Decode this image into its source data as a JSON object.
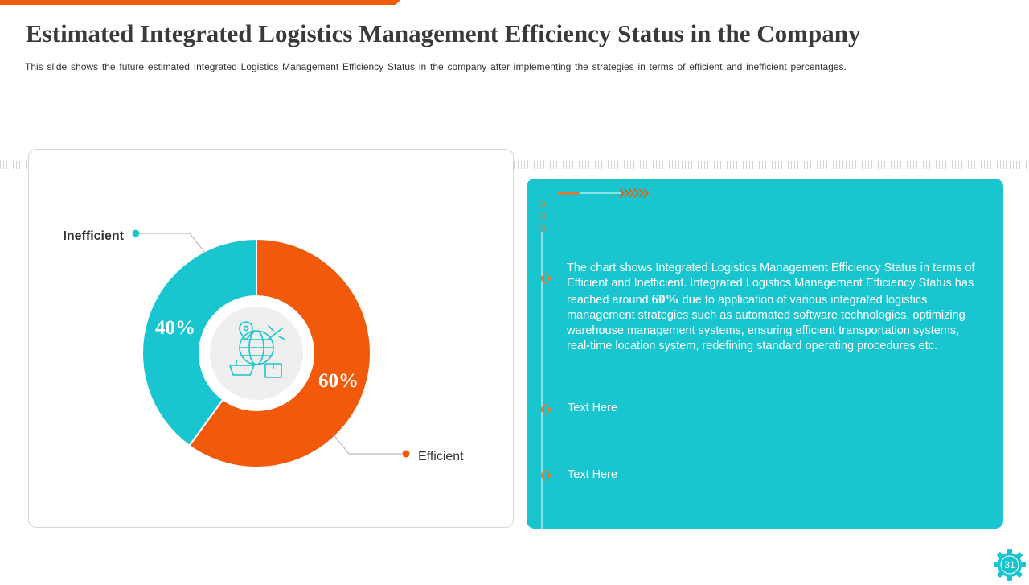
{
  "title": "Estimated Integrated Logistics Management Efficiency Status in the Company",
  "subtitle": "This slide shows the future estimated Integrated Logistics Management Efficiency Status in the company after implementing the strategies in terms of efficient and inefficient percentages.",
  "colors": {
    "accent_orange": "#f05a0a",
    "teal": "#19c5ce",
    "title_gray": "#3a3a3a"
  },
  "chart_data": {
    "type": "pie",
    "donut": true,
    "title": "",
    "categories": [
      "Efficient",
      "Inefficient"
    ],
    "values": [
      60,
      40
    ],
    "value_labels": [
      "60%",
      "40%"
    ],
    "colors": [
      "#f05a0a",
      "#19c5ce"
    ],
    "center_icon": "logistics-globe-icon"
  },
  "info": {
    "paragraph_before": "The chart shows Integrated Logistics Management Efficiency Status in terms of Efficient and Inefficient. Integrated Logistics Management Efficiency Status has reached around ",
    "highlight": "60%",
    "paragraph_after": " due to application of various integrated logistics management strategies such as automated software technologies, optimizing warehouse management systems, ensuring efficient transportation systems, real-time location system, redefining standard operating procedures etc.",
    "text_item_1": "Text Here",
    "text_item_2": "Text Here"
  },
  "page_number": "31"
}
